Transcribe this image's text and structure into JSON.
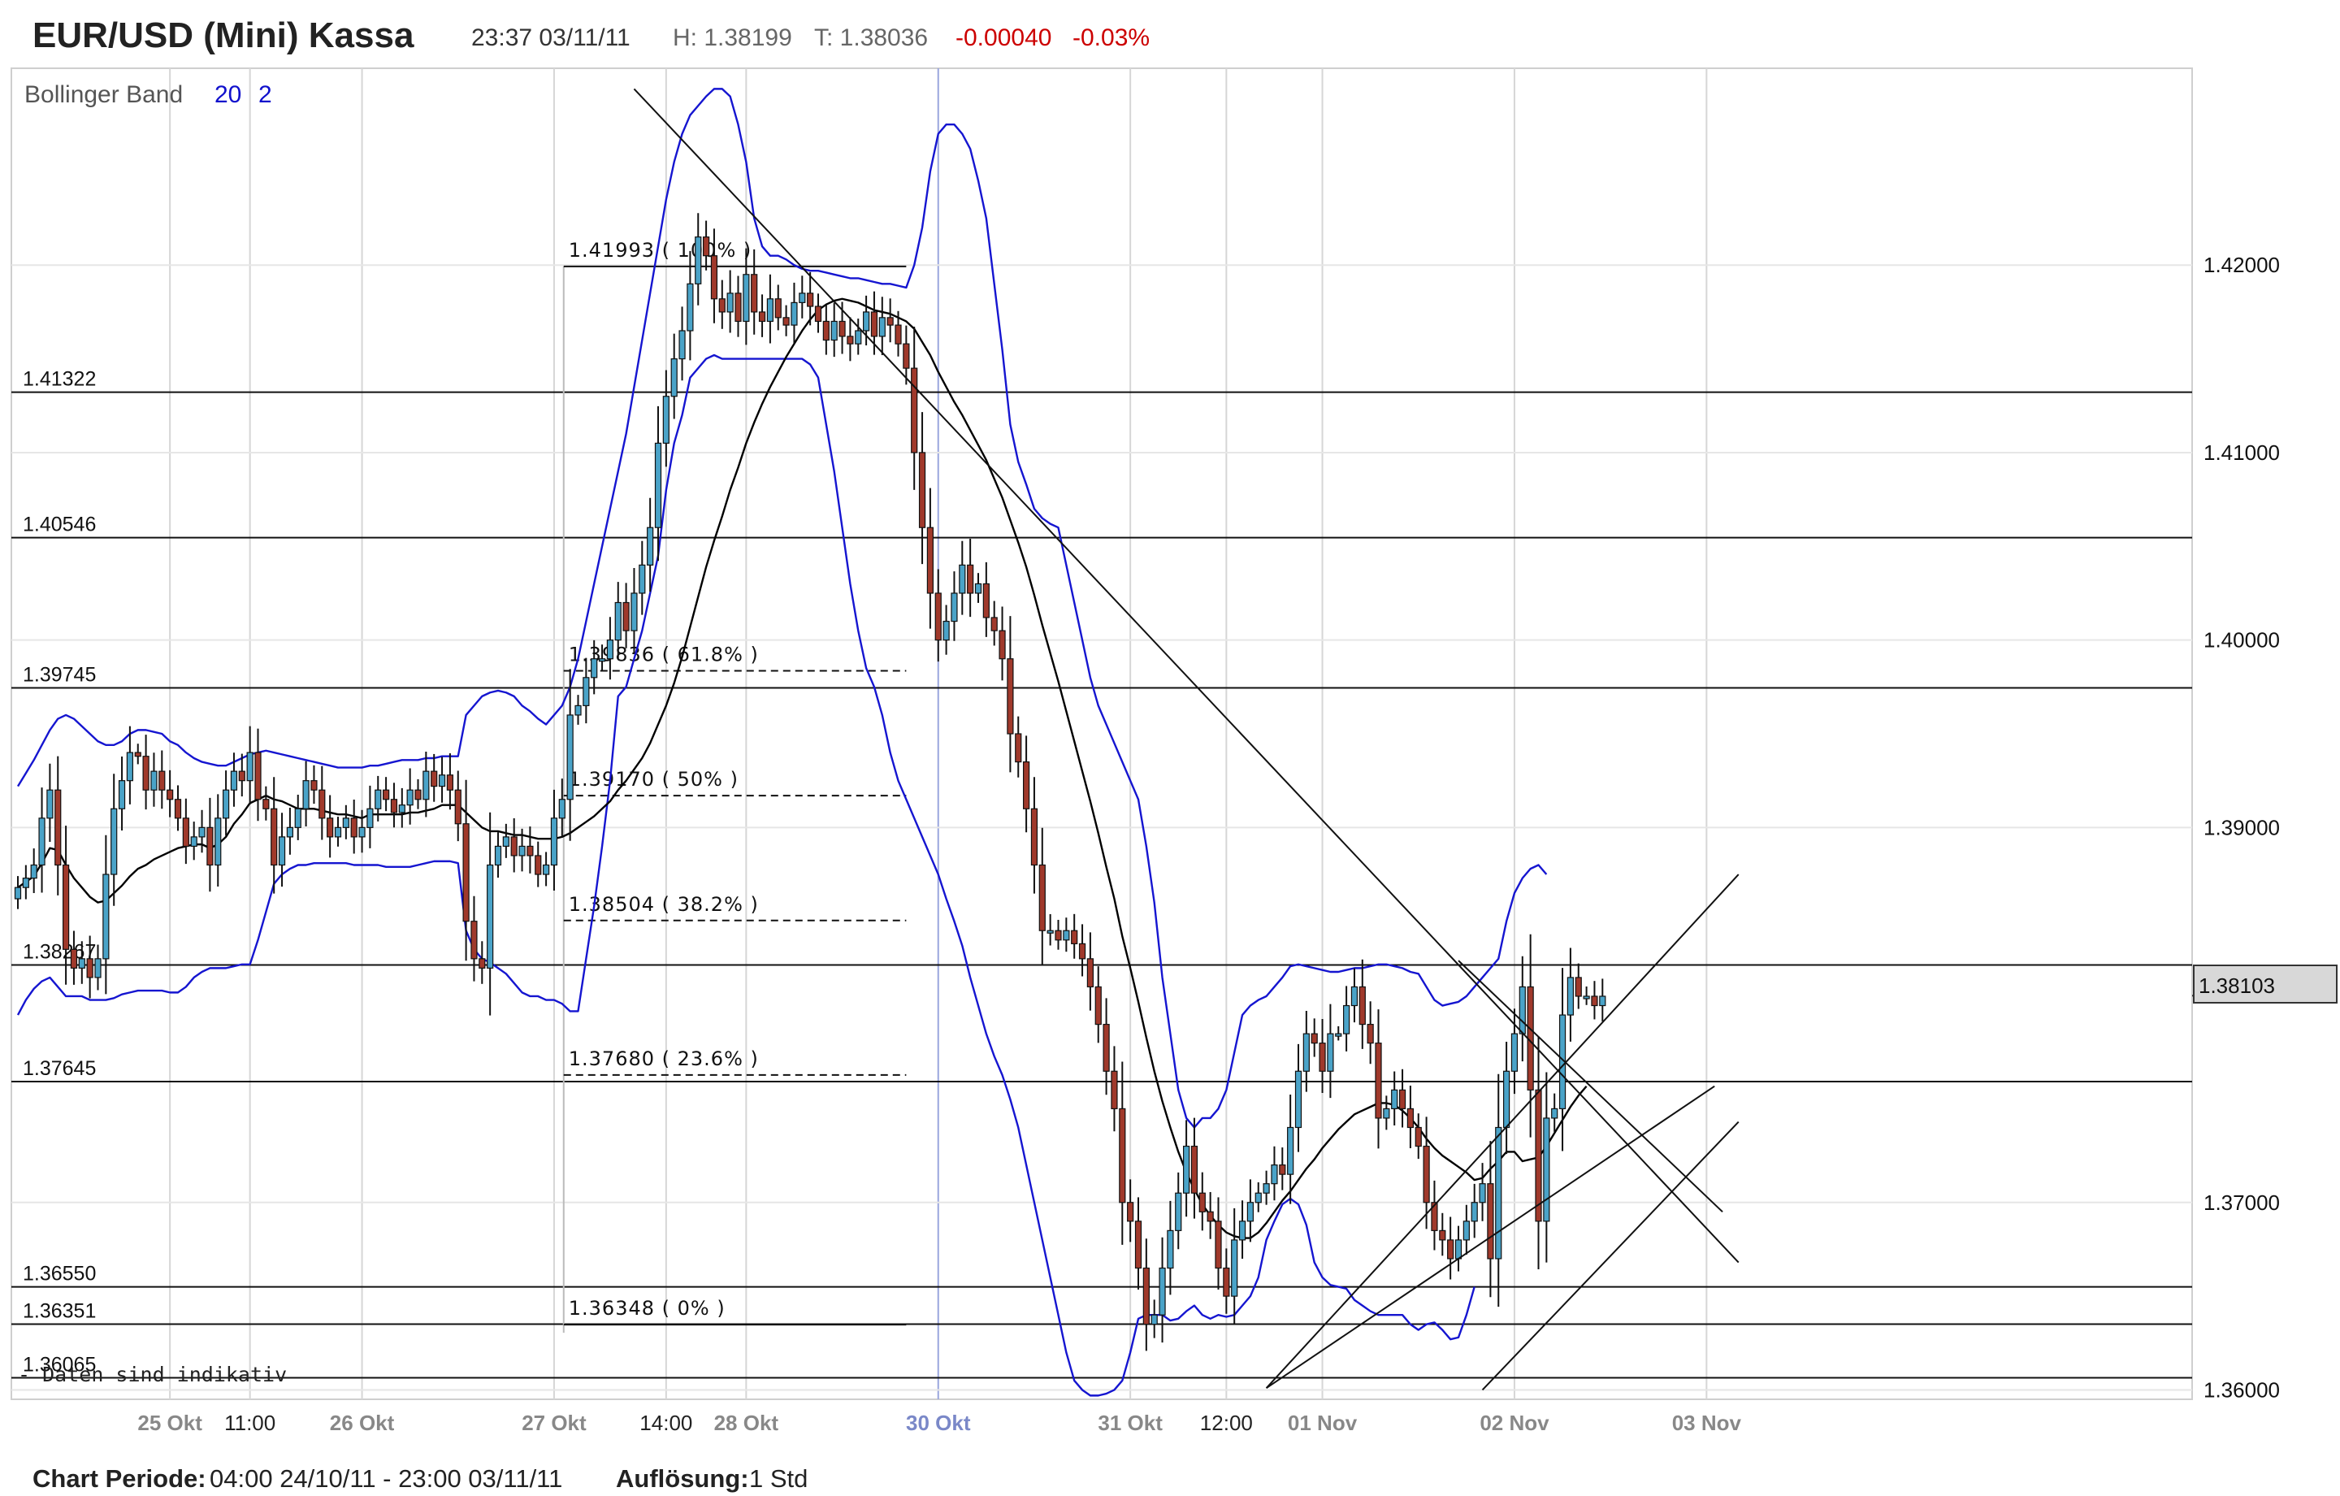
{
  "header": {
    "title": "EUR/USD (Mini) Kassa",
    "datetime": "23:37 03/11/11",
    "high": "H: 1.38199",
    "last": "T: 1.38036",
    "change": "-0.00040",
    "change_pct": "-0.03%"
  },
  "indicator": {
    "name": "Bollinger Band",
    "period": "20",
    "stddev": "2"
  },
  "disclaimer": "Daten sind indikativ",
  "footer": {
    "period_label": "Chart Periode:",
    "period_value": "04:00 24/10/11 - 23:00 03/11/11",
    "resolution_label": "Auflösung:",
    "resolution_value": "1 Std"
  },
  "colors": {
    "up": "#4aa3c8",
    "down": "#a0392b",
    "band": "#1515d0",
    "ma": "#000000",
    "negative": "#cc0000"
  },
  "chart_data": {
    "type": "candlestick",
    "instrument": "EUR/USD (Mini) Kassa",
    "resolution": "1 Std",
    "ylim": [
      1.3595,
      1.4305
    ],
    "y_ticks": [
      "1.42000",
      "1.41000",
      "1.40000",
      "1.39000",
      "1.37000",
      "1.36000"
    ],
    "current_price_label": "1.38103",
    "x_ticks": [
      {
        "label": "25 Okt",
        "bar": 19,
        "style": "date"
      },
      {
        "label": "11:00",
        "bar": 29,
        "style": "time"
      },
      {
        "label": "26 Okt",
        "bar": 43,
        "style": "date"
      },
      {
        "label": "27 Okt",
        "bar": 67,
        "style": "date"
      },
      {
        "label": "14:00",
        "bar": 81,
        "style": "time"
      },
      {
        "label": "28 Okt",
        "bar": 91,
        "style": "date"
      },
      {
        "label": "30 Okt",
        "bar": 115,
        "style": "highlight"
      },
      {
        "label": "31 Okt",
        "bar": 139,
        "style": "date"
      },
      {
        "label": "12:00",
        "bar": 151,
        "style": "time"
      },
      {
        "label": "01 Nov",
        "bar": 163,
        "style": "date"
      },
      {
        "label": "02 Nov",
        "bar": 187,
        "style": "date"
      },
      {
        "label": "03 Nov",
        "bar": 211,
        "style": "date"
      }
    ],
    "horizontal_levels": [
      {
        "label": "1.41322",
        "value": 1.41322
      },
      {
        "label": "1.40546",
        "value": 1.40546
      },
      {
        "label": "1.39745",
        "value": 1.39745
      },
      {
        "label": "1.38267",
        "value": 1.38267
      },
      {
        "label": "1.37645",
        "value": 1.37645
      },
      {
        "label": "1.36550",
        "value": 1.3655
      },
      {
        "label": "1.36351",
        "value": 1.36351
      },
      {
        "label": "1.36065",
        "value": 1.36065
      }
    ],
    "fibonacci": [
      {
        "label": "1.41993 ( 100% )",
        "value": 1.41993,
        "dashed": false
      },
      {
        "label": "1.39836 ( 61.8% )",
        "value": 1.39836,
        "dashed": true
      },
      {
        "label": "1.39170 ( 50% )",
        "value": 1.3917,
        "dashed": true
      },
      {
        "label": "1.38504 ( 38.2% )",
        "value": 1.38504,
        "dashed": true
      },
      {
        "label": "1.37680 ( 23.6% )",
        "value": 1.3768,
        "dashed": true
      },
      {
        "label": "1.36348 ( 0% )",
        "value": 1.36348,
        "dashed": false
      }
    ],
    "trend_lines": [
      [
        [
          77,
          1.4294
        ],
        [
          215,
          1.3668
        ]
      ],
      [
        [
          156,
          1.3601
        ],
        [
          215,
          1.3875
        ]
      ],
      [
        [
          156,
          1.3601
        ],
        [
          212,
          1.3762
        ]
      ],
      [
        [
          183,
          1.36
        ],
        [
          215,
          1.3743
        ]
      ],
      [
        [
          180,
          1.3829
        ],
        [
          213,
          1.3695
        ]
      ]
    ],
    "series": {
      "close": [
        1.3868,
        1.3873,
        1.388,
        1.3905,
        1.392,
        1.388,
        1.3835,
        1.3825,
        1.383,
        1.382,
        1.383,
        1.3875,
        1.391,
        1.3925,
        1.394,
        1.3938,
        1.392,
        1.393,
        1.392,
        1.3915,
        1.3905,
        1.389,
        1.3895,
        1.39,
        1.388,
        1.3905,
        1.392,
        1.393,
        1.3925,
        1.394,
        1.3915,
        1.391,
        1.388,
        1.3895,
        1.39,
        1.391,
        1.3925,
        1.392,
        1.3905,
        1.3895,
        1.39,
        1.3905,
        1.3895,
        1.39,
        1.391,
        1.392,
        1.3915,
        1.3908,
        1.3912,
        1.392,
        1.3915,
        1.393,
        1.3922,
        1.3928,
        1.392,
        1.3902,
        1.385,
        1.383,
        1.3825,
        1.388,
        1.389,
        1.3895,
        1.3885,
        1.389,
        1.3885,
        1.3875,
        1.388,
        1.3905,
        1.3915,
        1.396,
        1.3965,
        1.398,
        1.399,
        1.399,
        1.4,
        1.402,
        1.4005,
        1.4025,
        1.404,
        1.406,
        1.4105,
        1.413,
        1.415,
        1.4165,
        1.419,
        1.4215,
        1.4205,
        1.4182,
        1.4175,
        1.4185,
        1.417,
        1.4195,
        1.4175,
        1.417,
        1.4182,
        1.4172,
        1.4168,
        1.418,
        1.4185,
        1.4178,
        1.417,
        1.416,
        1.417,
        1.4162,
        1.4158,
        1.4165,
        1.4175,
        1.4162,
        1.4172,
        1.4168,
        1.4158,
        1.4145,
        1.41,
        1.406,
        1.4025,
        1.4,
        1.401,
        1.4025,
        1.404,
        1.4025,
        1.403,
        1.4012,
        1.4005,
        1.399,
        1.395,
        1.3935,
        1.391,
        1.388,
        1.3845,
        1.3845,
        1.384,
        1.3845,
        1.3838,
        1.383,
        1.3815,
        1.3795,
        1.377,
        1.375,
        1.37,
        1.369,
        1.3665,
        1.3635,
        1.364,
        1.3665,
        1.3685,
        1.3705,
        1.373,
        1.3705,
        1.3695,
        1.369,
        1.3665,
        1.365,
        1.368,
        1.369,
        1.37,
        1.3705,
        1.371,
        1.372,
        1.3715,
        1.374,
        1.377,
        1.379,
        1.3785,
        1.377,
        1.379,
        1.379,
        1.3805,
        1.3815,
        1.3795,
        1.3785,
        1.3745,
        1.375,
        1.376,
        1.375,
        1.374,
        1.373,
        1.37,
        1.3685,
        1.368,
        1.367,
        1.368,
        1.369,
        1.37,
        1.371,
        1.367,
        1.374,
        1.377,
        1.379,
        1.3815,
        1.376,
        1.369,
        1.3745,
        1.375,
        1.38,
        1.382,
        1.381,
        1.381,
        1.3805,
        1.381
      ],
      "bb_mid": [
        1.3868,
        1.3871,
        1.3874,
        1.3881,
        1.3889,
        1.3888,
        1.388,
        1.3873,
        1.3868,
        1.3863,
        1.386,
        1.3861,
        1.3865,
        1.3869,
        1.3874,
        1.3878,
        1.388,
        1.3883,
        1.3885,
        1.3887,
        1.3889,
        1.389,
        1.3891,
        1.3891,
        1.3889,
        1.3891,
        1.3895,
        1.3902,
        1.3907,
        1.3913,
        1.3915,
        1.3917,
        1.3915,
        1.3914,
        1.3912,
        1.391,
        1.391,
        1.391,
        1.3909,
        1.3908,
        1.3907,
        1.3907,
        1.3906,
        1.3905,
        1.3907,
        1.3907,
        1.3907,
        1.3907,
        1.3907,
        1.3908,
        1.3908,
        1.3909,
        1.391,
        1.3912,
        1.3912,
        1.3912,
        1.3908,
        1.3904,
        1.39,
        1.3898,
        1.3898,
        1.3897,
        1.3896,
        1.3896,
        1.3895,
        1.3894,
        1.3894,
        1.3894,
        1.3895,
        1.3897,
        1.39,
        1.3903,
        1.3906,
        1.391,
        1.3914,
        1.392,
        1.3925,
        1.3931,
        1.3937,
        1.3945,
        1.3955,
        1.3965,
        1.3977,
        1.3991,
        1.4007,
        1.4023,
        1.4039,
        1.4053,
        1.4066,
        1.408,
        1.4092,
        1.4105,
        1.4116,
        1.4126,
        1.4135,
        1.4143,
        1.4151,
        1.4158,
        1.4165,
        1.4171,
        1.4176,
        1.4179,
        1.4181,
        1.4182,
        1.4181,
        1.418,
        1.4178,
        1.4176,
        1.4175,
        1.4174,
        1.4172,
        1.417,
        1.4166,
        1.4159,
        1.4152,
        1.4143,
        1.4135,
        1.4127,
        1.412,
        1.4112,
        1.4104,
        1.4096,
        1.4086,
        1.4076,
        1.4064,
        1.4052,
        1.4039,
        1.4024,
        1.4008,
        1.3993,
        1.3978,
        1.3962,
        1.3946,
        1.393,
        1.3914,
        1.3897,
        1.3879,
        1.3862,
        1.3842,
        1.3825,
        1.3807,
        1.3788,
        1.377,
        1.3754,
        1.374,
        1.3727,
        1.3716,
        1.3707,
        1.3699,
        1.3693,
        1.3688,
        1.3684,
        1.3682,
        1.3681,
        1.3681,
        1.3684,
        1.3689,
        1.3695,
        1.3701,
        1.3706,
        1.3712,
        1.3718,
        1.3723,
        1.3729,
        1.3734,
        1.3739,
        1.3743,
        1.3747,
        1.3749,
        1.3751,
        1.3753,
        1.3753,
        1.3752,
        1.3749,
        1.3745,
        1.374,
        1.3734,
        1.3729,
        1.3725,
        1.3722,
        1.3719,
        1.3716,
        1.3712,
        1.3713,
        1.3718,
        1.3722,
        1.3727,
        1.3727,
        1.3722,
        1.3723,
        1.3724,
        1.373,
        1.3737,
        1.3744,
        1.3751,
        1.3757,
        1.3762
      ],
      "bb_upper": [
        1.3922,
        1.3929,
        1.3936,
        1.3944,
        1.3952,
        1.3958,
        1.396,
        1.3958,
        1.3954,
        1.395,
        1.3946,
        1.3944,
        1.3944,
        1.3946,
        1.395,
        1.3952,
        1.3952,
        1.3951,
        1.395,
        1.3946,
        1.3944,
        1.394,
        1.3937,
        1.3935,
        1.3934,
        1.3933,
        1.3933,
        1.3935,
        1.3937,
        1.3939,
        1.394,
        1.3941,
        1.394,
        1.3939,
        1.3938,
        1.3937,
        1.3936,
        1.3935,
        1.3934,
        1.3933,
        1.3932,
        1.3932,
        1.3932,
        1.3932,
        1.3933,
        1.3933,
        1.3934,
        1.3935,
        1.3936,
        1.3936,
        1.3936,
        1.3937,
        1.3937,
        1.3938,
        1.3938,
        1.3938,
        1.396,
        1.3965,
        1.397,
        1.3972,
        1.3973,
        1.3972,
        1.397,
        1.3965,
        1.3962,
        1.3958,
        1.3955,
        1.396,
        1.3965,
        1.3975,
        1.399,
        1.401,
        1.403,
        1.405,
        1.407,
        1.409,
        1.411,
        1.4135,
        1.416,
        1.4185,
        1.421,
        1.4235,
        1.4255,
        1.427,
        1.428,
        1.4285,
        1.429,
        1.4294,
        1.4294,
        1.429,
        1.4275,
        1.4255,
        1.4225,
        1.421,
        1.4205,
        1.4205,
        1.4203,
        1.42,
        1.4198,
        1.4197,
        1.4197,
        1.4196,
        1.4195,
        1.4194,
        1.4193,
        1.4193,
        1.4192,
        1.4191,
        1.419,
        1.419,
        1.4189,
        1.4188,
        1.42,
        1.422,
        1.425,
        1.427,
        1.4275,
        1.4275,
        1.427,
        1.4262,
        1.4245,
        1.4225,
        1.419,
        1.4155,
        1.4115,
        1.4095,
        1.4083,
        1.407,
        1.4065,
        1.4062,
        1.406,
        1.404,
        1.402,
        1.4,
        1.398,
        1.3965,
        1.3955,
        1.3945,
        1.3935,
        1.3925,
        1.3915,
        1.389,
        1.386,
        1.382,
        1.379,
        1.376,
        1.3745,
        1.374,
        1.3745,
        1.3745,
        1.375,
        1.376,
        1.378,
        1.38,
        1.3805,
        1.3808,
        1.381,
        1.3815,
        1.382,
        1.3826,
        1.3827,
        1.3826,
        1.3825,
        1.3824,
        1.3823,
        1.3823,
        1.3824,
        1.3825,
        1.3825,
        1.3826,
        1.3827,
        1.3827,
        1.3826,
        1.3825,
        1.3823,
        1.3822,
        1.3815,
        1.3808,
        1.3805,
        1.3806,
        1.3807,
        1.381,
        1.3815,
        1.382,
        1.3825,
        1.383,
        1.385,
        1.3865,
        1.3873,
        1.3878,
        1.388,
        1.3875
      ],
      "bb_lower": [
        1.38,
        1.3808,
        1.3814,
        1.3818,
        1.382,
        1.3815,
        1.381,
        1.381,
        1.381,
        1.3808,
        1.3808,
        1.3808,
        1.3809,
        1.3811,
        1.3812,
        1.3813,
        1.3813,
        1.3813,
        1.3813,
        1.3812,
        1.3812,
        1.3815,
        1.382,
        1.3823,
        1.3825,
        1.3825,
        1.3825,
        1.3826,
        1.3827,
        1.3827,
        1.384,
        1.3855,
        1.387,
        1.3875,
        1.3878,
        1.388,
        1.388,
        1.3881,
        1.3881,
        1.3881,
        1.3881,
        1.3881,
        1.388,
        1.388,
        1.388,
        1.388,
        1.3879,
        1.3879,
        1.3879,
        1.3879,
        1.388,
        1.3881,
        1.3882,
        1.3882,
        1.3882,
        1.3881,
        1.3845,
        1.3835,
        1.383,
        1.3828,
        1.3825,
        1.3822,
        1.3817,
        1.3812,
        1.381,
        1.381,
        1.3808,
        1.3808,
        1.3806,
        1.3802,
        1.3802,
        1.383,
        1.3858,
        1.389,
        1.3925,
        1.397,
        1.3975,
        1.399,
        1.4005,
        1.4025,
        1.4045,
        1.408,
        1.4105,
        1.412,
        1.414,
        1.4145,
        1.415,
        1.4152,
        1.415,
        1.415,
        1.415,
        1.415,
        1.415,
        1.415,
        1.415,
        1.415,
        1.415,
        1.415,
        1.415,
        1.4147,
        1.414,
        1.4115,
        1.409,
        1.406,
        1.403,
        1.4005,
        1.3985,
        1.3975,
        1.396,
        1.394,
        1.3925,
        1.3915,
        1.3905,
        1.3895,
        1.3885,
        1.3875,
        1.3862,
        1.385,
        1.3837,
        1.382,
        1.3805,
        1.379,
        1.3778,
        1.3768,
        1.3755,
        1.374,
        1.372,
        1.37,
        1.368,
        1.366,
        1.364,
        1.362,
        1.3605,
        1.36,
        1.3597,
        1.3597,
        1.3598,
        1.36,
        1.3605,
        1.362,
        1.3638,
        1.364,
        1.364,
        1.364,
        1.3637,
        1.3638,
        1.3642,
        1.3645,
        1.364,
        1.3638,
        1.364,
        1.3639,
        1.364,
        1.3645,
        1.365,
        1.366,
        1.368,
        1.369,
        1.3699,
        1.3702,
        1.3699,
        1.3688,
        1.3668,
        1.366,
        1.3656,
        1.3655,
        1.3654,
        1.3648,
        1.3645,
        1.3642,
        1.364,
        1.364,
        1.364,
        1.364,
        1.3635,
        1.3632,
        1.3635,
        1.3636,
        1.3632,
        1.3627,
        1.3628,
        1.364,
        1.3655
      ]
    }
  }
}
